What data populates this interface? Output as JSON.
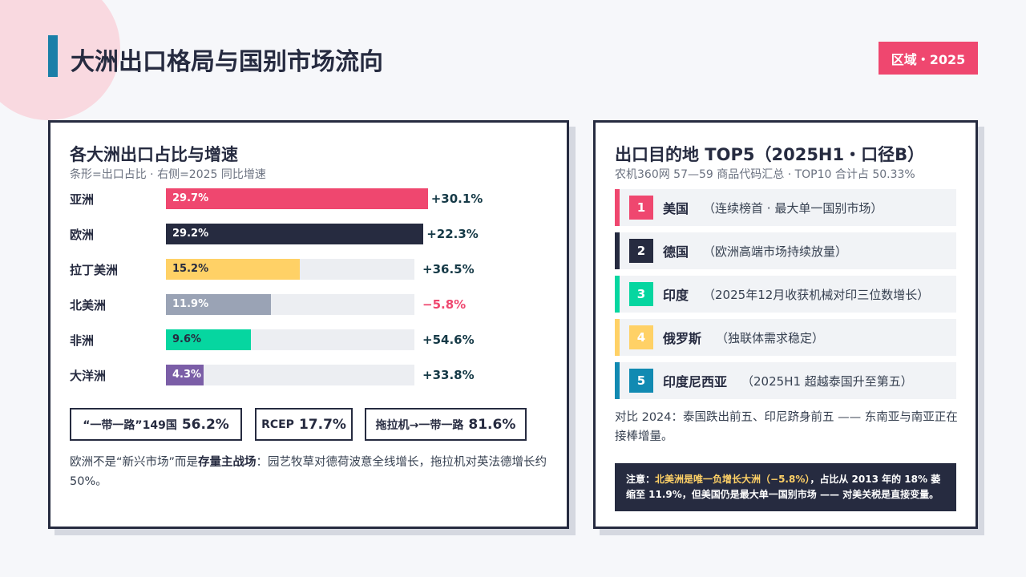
{
  "header": {
    "title": "大洲出口格局与国别市场流向",
    "badge": "区域・2025"
  },
  "chart_data": {
    "type": "bar",
    "orientation": "horizontal",
    "title": "各大洲出口占比与增速",
    "subtitle": "条形=出口占比 · 右侧=2025 同比增速",
    "categories": [
      "亚洲",
      "欧洲",
      "拉丁美洲",
      "北美洲",
      "非洲",
      "大洋洲"
    ],
    "values": [
      29.7,
      29.2,
      15.2,
      11.9,
      9.6,
      4.3
    ],
    "value_labels": [
      "29.7%",
      "29.2%",
      "15.2%",
      "11.9%",
      "9.6%",
      "4.3%"
    ],
    "colors": [
      "#ef476f",
      "#262b40",
      "#ffd166",
      "#9aa3b5",
      "#06d6a0",
      "#7b5ea7"
    ],
    "growth_labels": [
      "+30.1%",
      "+22.3%",
      "+36.5%",
      "−5.8%",
      "+54.6%",
      "+33.8%"
    ],
    "growth_colors": [
      "#163a47",
      "#163a47",
      "#163a47",
      "#ef476f",
      "#163a47",
      "#163a47"
    ],
    "xlim": [
      0,
      30
    ]
  },
  "stats": [
    {
      "label": "“一带一路”149国",
      "value": "56.2%"
    },
    {
      "label": "RCEP",
      "value": "17.7%"
    },
    {
      "label": "拖拉机→一带一路",
      "value": "81.6%"
    }
  ],
  "left_note": {
    "before": "欧洲不是“新兴市场”而是",
    "bold": "存量主战场",
    "after": "：园艺牧草对德荷波意全线增长，拖拉机对英法德增长约 50%。"
  },
  "right": {
    "title": "出口目的地 TOP5（2025H1・口径B）",
    "subtitle": "农机360网 57—59 商品代码汇总 · TOP10 合计占 50.33%",
    "items": [
      {
        "rank": "1",
        "name": "美国",
        "desc": "（连续榜首 · 最大单一国别市场）",
        "color": "#ef476f"
      },
      {
        "rank": "2",
        "name": "德国",
        "desc": "（欧洲高端市场持续放量）",
        "color": "#262b40"
      },
      {
        "rank": "3",
        "name": "印度",
        "desc": "（2025年12月收获机械对印三位数增长）",
        "color": "#06d6a0"
      },
      {
        "rank": "4",
        "name": "俄罗斯",
        "desc": "（独联体需求稳定）",
        "color": "#ffd166"
      },
      {
        "rank": "5",
        "name": "印度尼西亚",
        "desc": "（2025H1 超越泰国升至第五）",
        "color": "#118ab2"
      }
    ],
    "compare": "对比 2024：泰国跌出前五、印尼跻身前五 —— 东南亚与南亚正在接棒增量。",
    "notice": {
      "lead": "注意：",
      "highlight": "北美洲是唯一负增长大洲（−5.8%）",
      "rest": "，占比从 2013 年的 18% 萎缩至 11.9%，但美国仍是最大单一国别市场 —— 对美关税是直接变量。"
    }
  }
}
